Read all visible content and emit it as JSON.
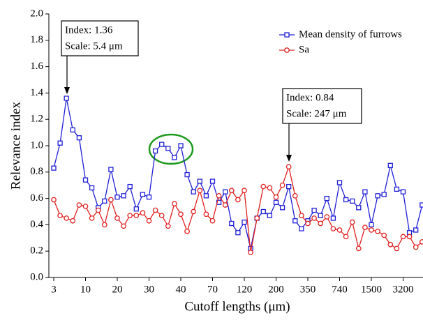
{
  "chart_data": {
    "type": "line",
    "x_label": "Cutoff lengths (μm)",
    "y_label": "Relevance index",
    "categories": [
      "3",
      null,
      null,
      null,
      null,
      "10",
      null,
      null,
      null,
      null,
      "20",
      null,
      null,
      null,
      null,
      "30",
      null,
      null,
      null,
      null,
      "40",
      null,
      null,
      null,
      null,
      "70",
      null,
      null,
      null,
      null,
      "120",
      null,
      null,
      null,
      null,
      "200",
      null,
      null,
      null,
      null,
      "350",
      null,
      null,
      null,
      null,
      "740",
      null,
      null,
      null,
      null,
      "1500",
      null,
      null,
      null,
      null,
      "3200",
      null,
      null,
      null
    ],
    "ylim": [
      0,
      2
    ],
    "yticks": [
      {
        "value": 0,
        "label": "0.0"
      },
      {
        "value": 0.2,
        "label": "0.2"
      },
      {
        "value": 0.4,
        "label": "0.4"
      },
      {
        "value": 0.6,
        "label": "0.6"
      },
      {
        "value": 0.8,
        "label": "0.8"
      },
      {
        "value": 1,
        "label": "1.0"
      },
      {
        "value": 1.2,
        "label": "1.2"
      },
      {
        "value": 1.4,
        "label": "1.4"
      },
      {
        "value": 1.6,
        "label": "1.6"
      },
      {
        "value": 1.8,
        "label": "1.8"
      },
      {
        "value": 2,
        "label": "2.0"
      }
    ],
    "legend": "top-right",
    "series": [
      {
        "name": "Mean density of furrows",
        "color": "#1f1fd6",
        "marker": "square",
        "values": [
          0.83,
          1.02,
          1.36,
          1.12,
          1.06,
          0.74,
          0.68,
          0.53,
          0.58,
          0.82,
          0.61,
          0.62,
          0.69,
          0.52,
          0.63,
          0.61,
          0.96,
          1.01,
          0.98,
          0.91,
          1.0,
          0.78,
          0.65,
          0.73,
          0.62,
          0.73,
          0.57,
          0.65,
          0.41,
          0.34,
          0.42,
          0.22,
          0.45,
          0.5,
          0.47,
          0.57,
          0.53,
          0.69,
          0.43,
          0.37,
          0.43,
          0.51,
          0.47,
          0.6,
          0.45,
          0.72,
          0.59,
          0.58,
          0.53,
          0.65,
          0.4,
          0.62,
          0.63,
          0.85,
          0.67,
          0.65,
          0.34,
          0.36,
          0.55
        ]
      },
      {
        "name": "Sa",
        "color": "#e02020",
        "marker": "circle",
        "values": [
          0.59,
          0.47,
          0.45,
          0.43,
          0.55,
          0.54,
          0.45,
          0.51,
          0.4,
          0.59,
          0.45,
          0.39,
          0.47,
          0.47,
          0.49,
          0.43,
          0.51,
          0.47,
          0.39,
          0.56,
          0.48,
          0.35,
          0.5,
          0.66,
          0.48,
          0.43,
          0.62,
          0.55,
          0.66,
          0.59,
          0.66,
          0.19,
          0.45,
          0.69,
          0.68,
          0.61,
          0.7,
          0.84,
          0.62,
          0.47,
          0.41,
          0.45,
          0.41,
          0.46,
          0.37,
          0.36,
          0.31,
          0.42,
          0.22,
          0.38,
          0.36,
          0.35,
          0.32,
          0.25,
          0.22,
          0.31,
          0.31,
          0.23,
          0.27
        ]
      }
    ],
    "annotations": [
      {
        "lines": [
          "Index: 1.36",
          "Scale: 5.4 μm"
        ]
      },
      {
        "lines": [
          "Index: 0.84",
          "Scale: 247 μm"
        ]
      }
    ]
  }
}
